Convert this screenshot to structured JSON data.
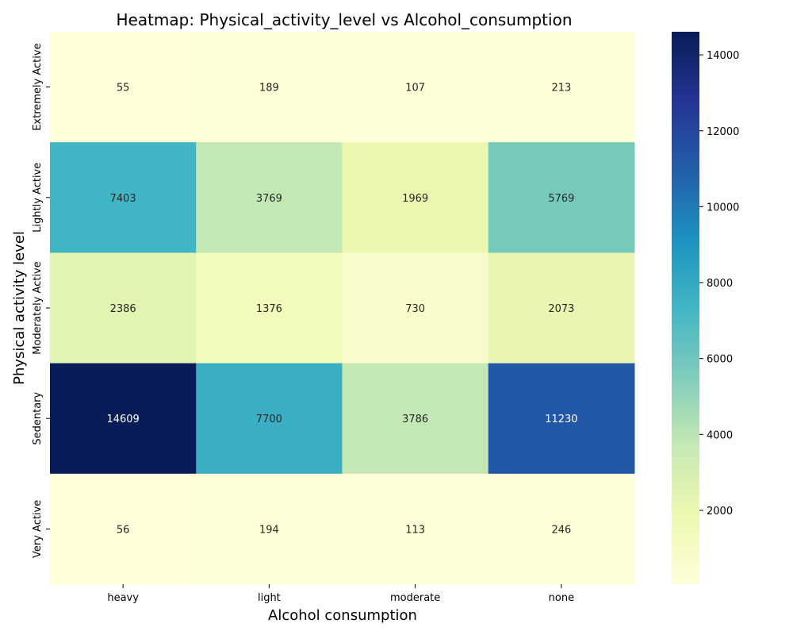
{
  "chart_data": {
    "type": "heatmap",
    "title": "Heatmap: Physical_activity_level vs Alcohol_consumption",
    "xlabel": "Alcohol consumption",
    "ylabel": "Physical activity level",
    "x_categories": [
      "heavy",
      "light",
      "moderate",
      "none"
    ],
    "y_categories": [
      "Extremely Active",
      "Lightly Active",
      "Moderately Active",
      "Sedentary",
      "Very Active"
    ],
    "values": [
      [
        55,
        189,
        107,
        213
      ],
      [
        7403,
        3769,
        1969,
        5769
      ],
      [
        2386,
        1376,
        730,
        2073
      ],
      [
        14609,
        7700,
        3786,
        11230
      ],
      [
        56,
        194,
        113,
        246
      ]
    ],
    "colormap": "YlGnBu",
    "colorbar": {
      "range": [
        55,
        14609
      ],
      "ticks": [
        2000,
        4000,
        6000,
        8000,
        10000,
        12000,
        14000
      ],
      "tick_labels": [
        "2000",
        "4000",
        "6000",
        "8000",
        "10000",
        "12000",
        "14000"
      ]
    },
    "colors": {
      "text_dark": "#262626",
      "text_light": "#ffffff"
    }
  }
}
